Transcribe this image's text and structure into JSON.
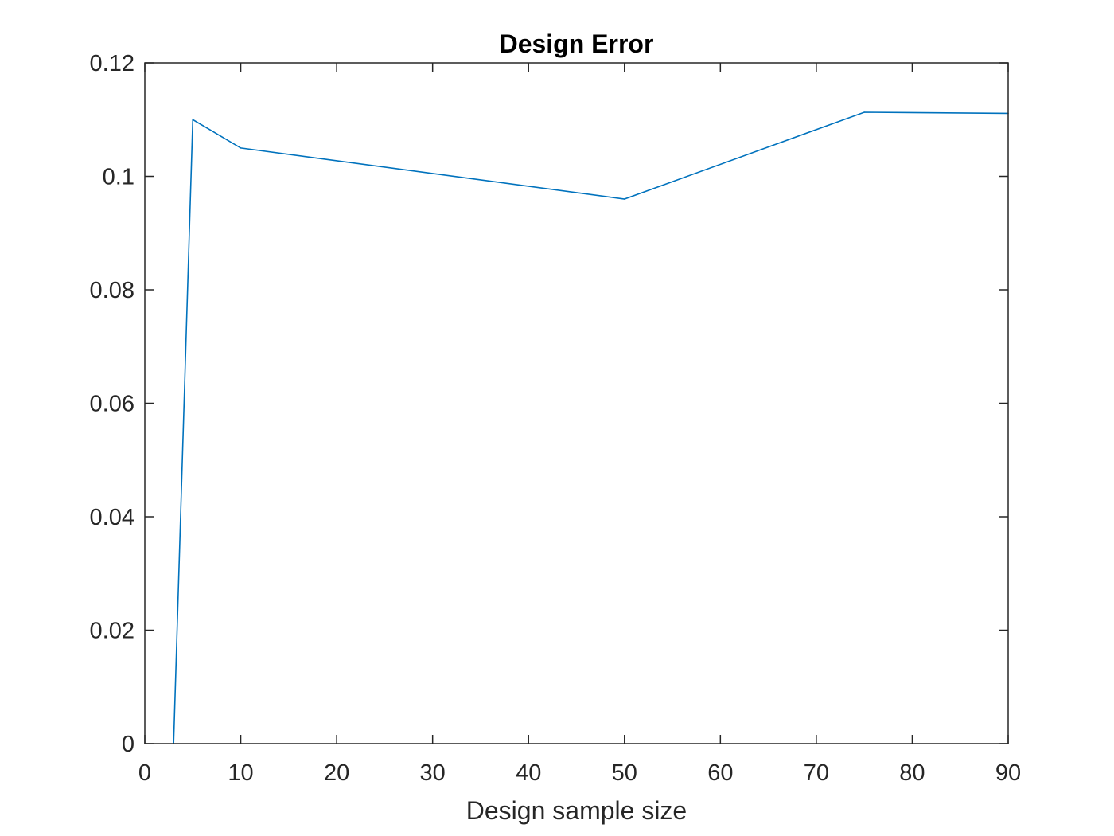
{
  "chart_data": {
    "type": "line",
    "title": "Design Error",
    "xlabel": "Design sample size",
    "ylabel": "",
    "xlim": [
      0,
      90
    ],
    "ylim": [
      0,
      0.12
    ],
    "x_ticks": [
      "0",
      "10",
      "20",
      "30",
      "40",
      "50",
      "60",
      "70",
      "80",
      "90"
    ],
    "y_ticks": [
      "0",
      "0.02",
      "0.04",
      "0.06",
      "0.08",
      "0.1",
      "0.12"
    ],
    "grid": false,
    "legend": "none",
    "series": [
      {
        "color": "#0072BD",
        "x": [
          3,
          5,
          10,
          50,
          75,
          90
        ],
        "y": [
          0,
          0.11,
          0.105,
          0.096,
          0.1113,
          0.1111
        ]
      }
    ]
  }
}
